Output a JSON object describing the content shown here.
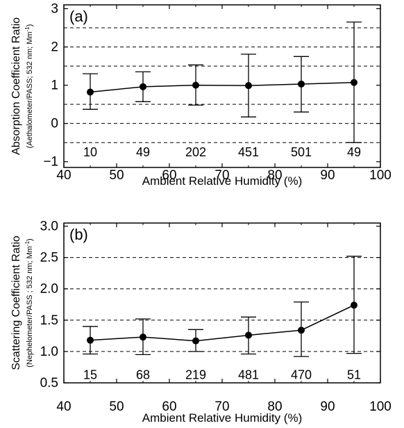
{
  "chart_data": [
    {
      "panel_label": "(a)",
      "type": "line",
      "xlabel": "Ambient Relative Humidity (%)",
      "ylabel_main": "Absorption Coefficient Ratio",
      "ylabel_sub_prefix": "(Aethalometer/PASS; 532 nm; Mm",
      "ylabel_sub_suffix": ")",
      "ylabel_sub_sup": "-1",
      "xlim": [
        40,
        100
      ],
      "ylim": [
        -1.15,
        3.1
      ],
      "x_ticks": [
        40,
        50,
        60,
        70,
        80,
        90,
        100
      ],
      "y_ticks": [
        -1,
        0,
        1,
        2,
        3
      ],
      "dashed_grid_y": [
        -0.5,
        0,
        0.5,
        1.5,
        2,
        2.5
      ],
      "x": [
        45,
        55,
        65,
        75,
        85,
        95
      ],
      "values": [
        0.82,
        0.96,
        1.0,
        0.99,
        1.03,
        1.07
      ],
      "err_low": [
        0.37,
        0.57,
        0.48,
        0.17,
        0.3,
        -0.5
      ],
      "err_high": [
        1.3,
        1.35,
        1.53,
        1.81,
        1.75,
        2.65
      ],
      "counts": [
        "10",
        "49",
        "202",
        "451",
        "501",
        "49"
      ],
      "count_y": -0.75
    },
    {
      "panel_label": "(b)",
      "type": "line",
      "xlabel": "Ambient Relative Humidity (%)",
      "ylabel_main": "Scattering Coefficient Ratio",
      "ylabel_sub_prefix": "(Nephelometer/PASS ; 532 nm; Mm",
      "ylabel_sub_suffix": ")",
      "ylabel_sub_sup": "-1",
      "xlim": [
        40,
        100
      ],
      "ylim": [
        0.5,
        3.05
      ],
      "x_ticks": [
        40,
        50,
        60,
        70,
        80,
        90,
        100
      ],
      "y_ticks": [
        "0.5",
        "1.0",
        "1.5",
        "2.0",
        "2.5",
        "3.0"
      ],
      "dashed_grid_y": [
        1.0,
        1.5,
        2.0,
        2.5
      ],
      "x": [
        45,
        55,
        65,
        75,
        85,
        95
      ],
      "values": [
        1.18,
        1.23,
        1.17,
        1.26,
        1.34,
        1.74
      ],
      "err_low": [
        0.96,
        0.95,
        1.0,
        0.96,
        0.92,
        0.97
      ],
      "err_high": [
        1.4,
        1.52,
        1.35,
        1.55,
        1.79,
        2.52
      ],
      "counts": [
        "15",
        "68",
        "219",
        "481",
        "470",
        "51"
      ],
      "count_y": 0.63
    }
  ]
}
